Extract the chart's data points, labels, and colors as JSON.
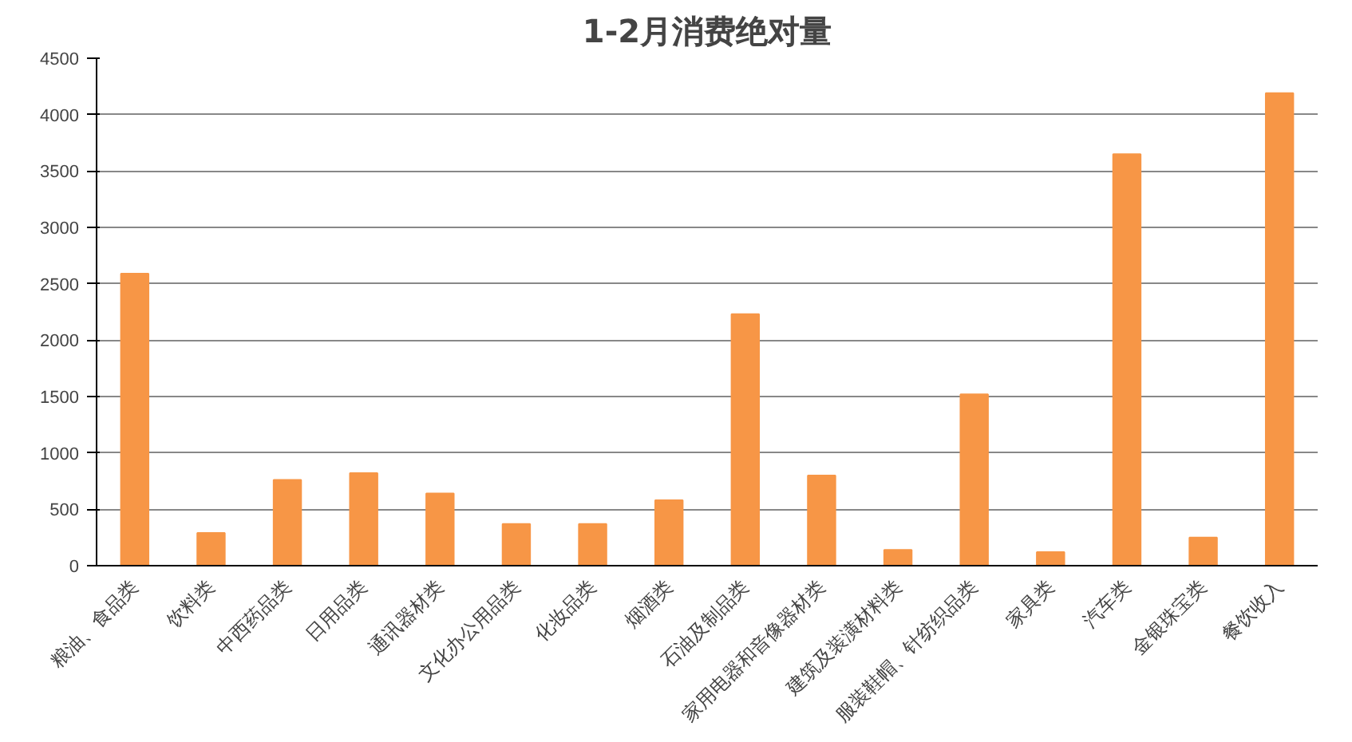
{
  "chart_data": {
    "type": "bar",
    "title": "1-2月消费绝对量",
    "categories": [
      "粮油、食品类",
      "饮料类",
      "中西药品类",
      "日用品类",
      "通讯器材类",
      "文化办公用品类",
      "化妆品类",
      "烟酒类",
      "石油及制品类",
      "家用电器和音像器材类",
      "建筑及装潢材料类",
      "服装鞋帽、针纺织品类",
      "家具类",
      "汽车类",
      "金银珠宝类",
      "餐饮收入"
    ],
    "values": [
      2590,
      290,
      760,
      820,
      640,
      370,
      370,
      580,
      2230,
      800,
      140,
      1520,
      120,
      3650,
      250,
      4190
    ],
    "color": "#f79646",
    "ylim": [
      0,
      4500
    ],
    "yticks": [
      0,
      500,
      1000,
      1500,
      2000,
      2500,
      3000,
      3500,
      4000,
      4500
    ],
    "grid": "y"
  }
}
